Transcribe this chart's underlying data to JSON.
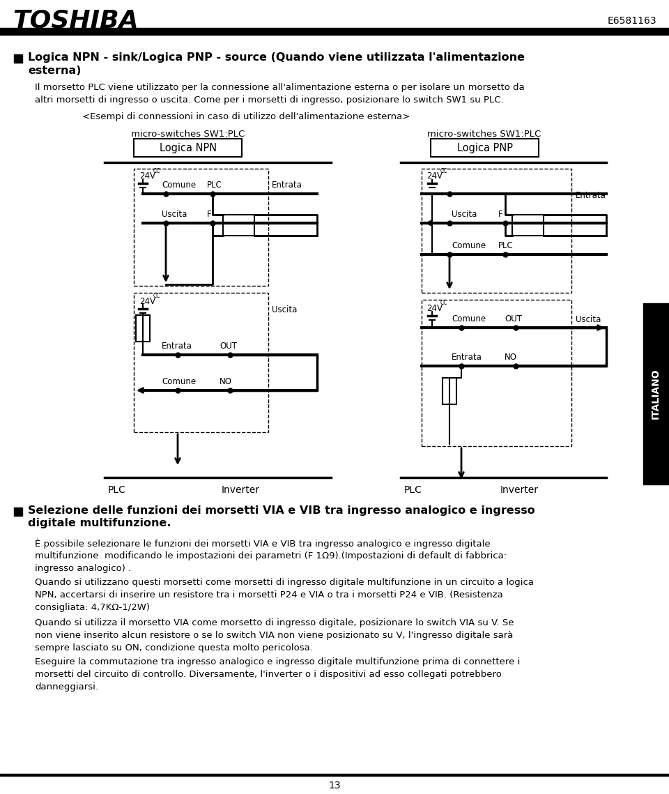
{
  "title_company": "TOSHIBA",
  "title_code": "E6581163",
  "page_number": "13",
  "header_text1": "Logica NPN - sink/Logica PNP - source (Quando viene utilizzata l'alimentazione",
  "header_text2": "esterna)",
  "body_text1": "Il morsetto PLC viene utilizzato per la connessione all'alimentazione esterna o per isolare un morsetto da",
  "body_text2": "altri morsetti di ingresso o uscita. Come per i morsetti di ingresso, posizionare lo switch SW1 su PLC.",
  "diagram_title": "<Esempi di connessioni in caso di utilizzo dell'alimentazione esterna>",
  "npn_title": "micro-switches SW1:PLC",
  "npn_subtitle": "Logica NPN",
  "pnp_title": "micro-switches SW1:PLC",
  "pnp_subtitle": "Logica PNP",
  "plc_label": "PLC",
  "inverter_label": "Inverter",
  "section2_bullet": "Selezione delle funzioni dei morsetti VIA e VIB tra ingresso analogico e ingresso",
  "section2_bullet2": "digitale multifunzione.",
  "section2_text1": "È possibile selezionare le funzioni dei morsetti VIA e VIB tra ingresso analogico e ingresso digitale",
  "section2_text2": "multifunzione  modificando le impostazioni dei parametri (F 1Ω9).(Impostazioni di default di fabbrica:",
  "section2_text3": "ingresso analogico) .",
  "section2_text4": "Quando si utilizzano questi morsetti come morsetti di ingresso digitale multifunzione in un circuito a logica",
  "section2_text5": "NPN, accertarsi di inserire un resistore tra i morsetti P24 e VIA o tra i morsetti P24 e VIB. (Resistenza",
  "section2_text6": "consigliata: 4,7KΩ-1/2W)",
  "section2_text7": "Quando si utilizza il morsetto VIA come morsetto di ingresso digitale, posizionare lo switch VIA su V. Se",
  "section2_text8": "non viene inserito alcun resistore o se lo switch VIA non viene posizionato su V, l'ingresso digitale sarà",
  "section2_text9": "sempre lasciato su ON, condizione questa molto pericolosa.",
  "section2_text10": "Eseguire la commutazione tra ingresso analogico e ingresso digitale multifunzione prima di connettere i",
  "section2_text11": "morsetti del circuito di controllo. Diversamente, l'inverter o i dispositivi ad esso collegati potrebbero",
  "section2_text12": "danneggiarsi.",
  "italiano_label": "ITALIANO",
  "bg_color": "#ffffff"
}
